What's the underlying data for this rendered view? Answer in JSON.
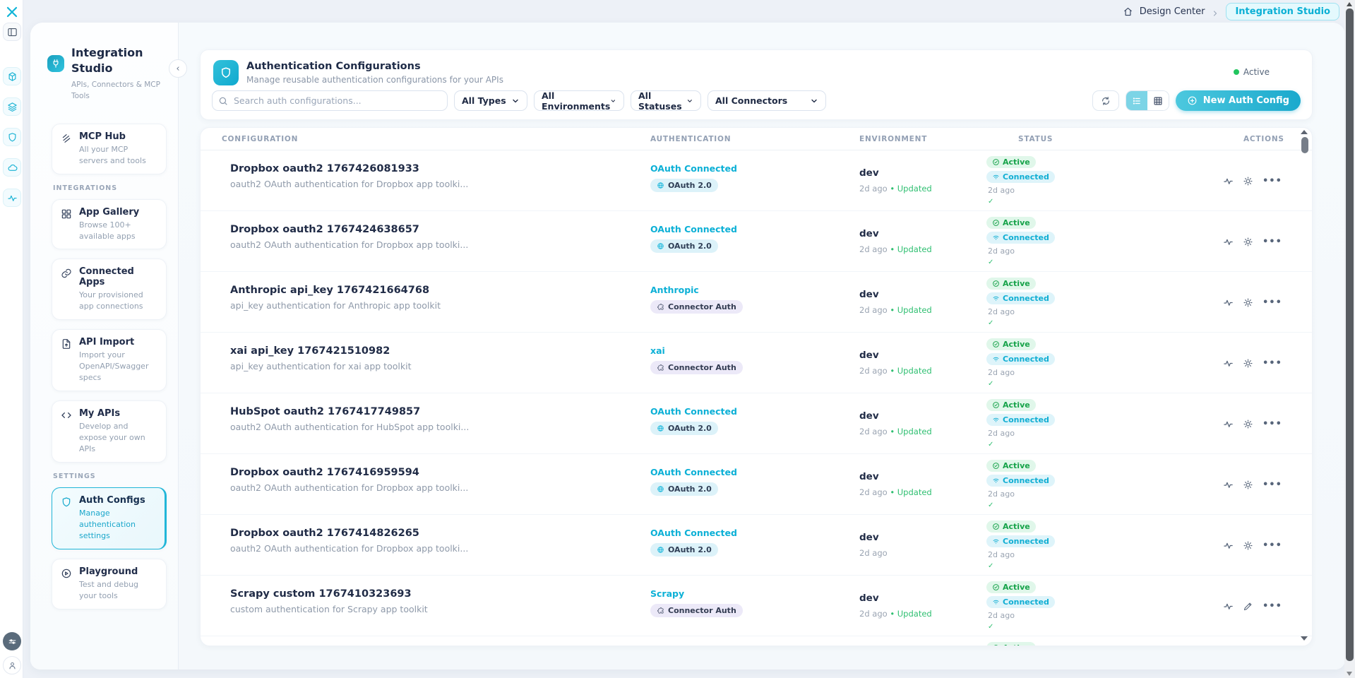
{
  "topbar": {
    "breadcrumb": "Design Center",
    "current": "Integration Studio"
  },
  "rail": {
    "icons": [
      "logo",
      "panel-toggle",
      "cube",
      "layers",
      "shield",
      "cloud",
      "pulse",
      "sliders",
      "user"
    ]
  },
  "sidebar": {
    "title": "Integration Studio",
    "tagline": "APIs, Connectors & MCP Tools",
    "collapse": "‹",
    "sections": [
      {
        "label": "",
        "items": [
          {
            "icon": "coil",
            "title": "MCP Hub",
            "desc": "All your MCP servers and tools",
            "active": false
          }
        ]
      },
      {
        "label": "INTEGRATIONS",
        "items": [
          {
            "icon": "grid",
            "title": "App Gallery",
            "desc": "Browse 100+ available apps",
            "active": false
          },
          {
            "icon": "link",
            "title": "Connected Apps",
            "desc": "Your provisioned app connections",
            "active": false
          },
          {
            "icon": "file-import",
            "title": "API Import",
            "desc": "Import your OpenAPI/Swagger specs",
            "active": false
          },
          {
            "icon": "code",
            "title": "My APIs",
            "desc": "Develop and expose your own APIs",
            "active": false
          }
        ]
      },
      {
        "label": "SETTINGS",
        "items": [
          {
            "icon": "shield",
            "title": "Auth Configs",
            "desc": "Manage authentication settings",
            "active": true
          },
          {
            "icon": "play",
            "title": "Playground",
            "desc": "Test and debug your tools",
            "active": false
          }
        ]
      }
    ]
  },
  "header": {
    "title": "Authentication Configurations",
    "subtitle": "Manage reusable authentication configurations for your APIs",
    "status_label": "Active",
    "status_color": "#22c55e"
  },
  "filters": {
    "search_placeholder": "Search auth configurations...",
    "selects": [
      "All Types",
      "All Environments",
      "All Statuses",
      "All Connectors"
    ],
    "new_button": "New Auth Config"
  },
  "table": {
    "columns": [
      "CONFIGURATION",
      "AUTHENTICATION",
      "ENVIRONMENT",
      "STATUS",
      "ACTIONS"
    ],
    "rows": [
      {
        "name": "Dropbox oauth2 1767426081933",
        "desc": "oauth2 OAuth authentication for Dropbox app toolki...",
        "auth_label": "OAuth Connected",
        "auth_badge": "OAuth 2.0",
        "auth_type": "oauth",
        "env": "dev",
        "env_time": "2d ago",
        "env_updated": "Updated",
        "status": "Active",
        "connection": "Connected",
        "status_time": "2d ago",
        "status_check": "✓",
        "edit_icon": "gear"
      },
      {
        "name": "Dropbox oauth2 1767424638657",
        "desc": "oauth2 OAuth authentication for Dropbox app toolki...",
        "auth_label": "OAuth Connected",
        "auth_badge": "OAuth 2.0",
        "auth_type": "oauth",
        "env": "dev",
        "env_time": "2d ago",
        "env_updated": "Updated",
        "status": "Active",
        "connection": "Connected",
        "status_time": "2d ago",
        "status_check": "✓",
        "edit_icon": "gear"
      },
      {
        "name": "Anthropic api_key 1767421664768",
        "desc": "api_key authentication for Anthropic app toolkit",
        "auth_label": "Anthropic",
        "auth_badge": "Connector Auth",
        "auth_type": "connector",
        "env": "dev",
        "env_time": "2d ago",
        "env_updated": "Updated",
        "status": "Active",
        "connection": "Connected",
        "status_time": "2d ago",
        "status_check": "✓",
        "edit_icon": "gear"
      },
      {
        "name": "xai api_key 1767421510982",
        "desc": "api_key authentication for xai app toolkit",
        "auth_label": "xai",
        "auth_badge": "Connector Auth",
        "auth_type": "connector",
        "env": "dev",
        "env_time": "2d ago",
        "env_updated": "Updated",
        "status": "Active",
        "connection": "Connected",
        "status_time": "2d ago",
        "status_check": "✓",
        "edit_icon": "gear"
      },
      {
        "name": "HubSpot oauth2 1767417749857",
        "desc": "oauth2 OAuth authentication for HubSpot app toolki...",
        "auth_label": "OAuth Connected",
        "auth_badge": "OAuth 2.0",
        "auth_type": "oauth",
        "env": "dev",
        "env_time": "2d ago",
        "env_updated": "Updated",
        "status": "Active",
        "connection": "Connected",
        "status_time": "2d ago",
        "status_check": "✓",
        "edit_icon": "gear"
      },
      {
        "name": "Dropbox oauth2 1767416959594",
        "desc": "oauth2 OAuth authentication for Dropbox app toolki...",
        "auth_label": "OAuth Connected",
        "auth_badge": "OAuth 2.0",
        "auth_type": "oauth",
        "env": "dev",
        "env_time": "2d ago",
        "env_updated": "Updated",
        "status": "Active",
        "connection": "Connected",
        "status_time": "2d ago",
        "status_check": "✓",
        "edit_icon": "gear"
      },
      {
        "name": "Dropbox oauth2 1767414826265",
        "desc": "oauth2 OAuth authentication for Dropbox app toolki...",
        "auth_label": "OAuth Connected",
        "auth_badge": "OAuth 2.0",
        "auth_type": "oauth",
        "env": "dev",
        "env_time": "2d ago",
        "env_updated": "",
        "status": "Active",
        "connection": "Connected",
        "status_time": "2d ago",
        "status_check": "✓",
        "edit_icon": "gear"
      },
      {
        "name": "Scrapy custom 1767410323693",
        "desc": "custom authentication for Scrapy app toolkit",
        "auth_label": "Scrapy",
        "auth_badge": "Connector Auth",
        "auth_type": "connector",
        "env": "dev",
        "env_time": "2d ago",
        "env_updated": "Updated",
        "status": "Active",
        "connection": "Connected",
        "status_time": "2d ago",
        "status_check": "✓",
        "edit_icon": "pencil"
      }
    ],
    "partial_row": {
      "status": "Active"
    }
  },
  "colors": {
    "accent": "#14b1d4",
    "active_green": "#17a34a",
    "connected_cyan": "#10aed3"
  }
}
